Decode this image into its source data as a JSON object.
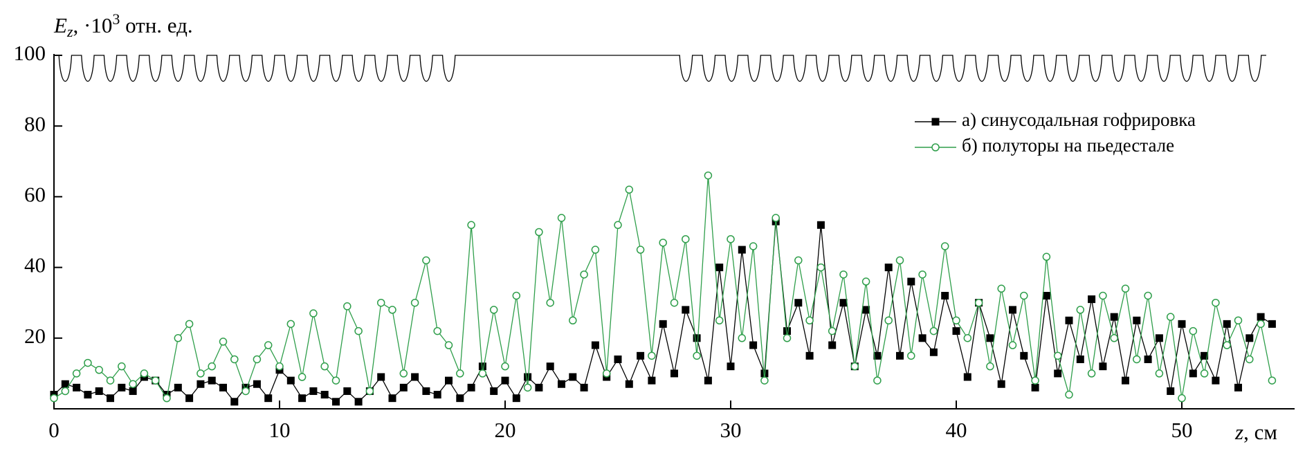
{
  "chart_data": {
    "type": "line",
    "ylabel": [
      "E",
      "z",
      ", ·10",
      "3",
      " отн. ед."
    ],
    "xlabel": [
      "z",
      ", см"
    ],
    "x": [
      0,
      0.5,
      1,
      1.5,
      2,
      2.5,
      3,
      3.5,
      4,
      4.5,
      5,
      5.5,
      6,
      6.5,
      7,
      7.5,
      8,
      8.5,
      9,
      9.5,
      10,
      10.5,
      11,
      11.5,
      12,
      12.5,
      13,
      13.5,
      14,
      14.5,
      15,
      15.5,
      16,
      16.5,
      17,
      17.5,
      18,
      18.5,
      19,
      19.5,
      20,
      20.5,
      21,
      21.5,
      22,
      22.5,
      23,
      23.5,
      24,
      24.5,
      25,
      25.5,
      26,
      26.5,
      27,
      27.5,
      28,
      28.5,
      29,
      29.5,
      30,
      30.5,
      31,
      31.5,
      32,
      32.5,
      33,
      33.5,
      34,
      34.5,
      35,
      35.5,
      36,
      36.5,
      37,
      37.5,
      38,
      38.5,
      39,
      39.5,
      40,
      40.5,
      41,
      41.5,
      42,
      42.5,
      43,
      43.5,
      44,
      44.5,
      45,
      45.5,
      46,
      46.5,
      47,
      47.5,
      48,
      48.5,
      49,
      49.5,
      50,
      50.5,
      51,
      51.5,
      52,
      52.5,
      53,
      53.5,
      54
    ],
    "series": [
      {
        "name": "а) синусодальная гофрировка",
        "color": "#000000",
        "marker": "square",
        "values": [
          4,
          7,
          6,
          4,
          5,
          3,
          6,
          5,
          9,
          8,
          4,
          6,
          3,
          7,
          8,
          6,
          2,
          6,
          7,
          3,
          11,
          8,
          3,
          5,
          4,
          2,
          5,
          2,
          5,
          9,
          3,
          6,
          9,
          5,
          4,
          8,
          3,
          6,
          12,
          5,
          8,
          3,
          9,
          6,
          12,
          7,
          9,
          6,
          18,
          9,
          14,
          7,
          15,
          8,
          24,
          10,
          28,
          20,
          8,
          40,
          12,
          45,
          18,
          10,
          53,
          22,
          30,
          15,
          52,
          18,
          30,
          12,
          28,
          15,
          40,
          15,
          36,
          20,
          16,
          32,
          22,
          9,
          30,
          20,
          7,
          28,
          15,
          6,
          32,
          10,
          25,
          14,
          31,
          12,
          26,
          8,
          25,
          14,
          20,
          5,
          24,
          10,
          15,
          8,
          24,
          6,
          20,
          26,
          24
        ]
      },
      {
        "name": "б) полуторы на пьедестале",
        "color": "#2e9e4a",
        "marker": "circle",
        "values": [
          3,
          5,
          10,
          13,
          11,
          8,
          12,
          7,
          10,
          8,
          3,
          20,
          24,
          10,
          12,
          19,
          14,
          5,
          14,
          18,
          12,
          24,
          9,
          27,
          12,
          8,
          29,
          22,
          5,
          30,
          28,
          10,
          30,
          42,
          22,
          18,
          10,
          52,
          10,
          28,
          12,
          32,
          6,
          50,
          30,
          54,
          25,
          38,
          45,
          10,
          52,
          62,
          45,
          15,
          47,
          30,
          48,
          15,
          66,
          25,
          48,
          20,
          46,
          8,
          54,
          20,
          42,
          25,
          40,
          22,
          38,
          12,
          36,
          8,
          25,
          42,
          15,
          38,
          22,
          46,
          25,
          20,
          30,
          12,
          34,
          18,
          32,
          8,
          43,
          15,
          4,
          28,
          10,
          32,
          20,
          34,
          14,
          32,
          10,
          26,
          3,
          22,
          10,
          30,
          18,
          25,
          14,
          24,
          8
        ]
      }
    ],
    "xlim": [
      0,
      55
    ],
    "ylim": [
      0,
      100
    ],
    "xticks": [
      0,
      10,
      20,
      30,
      40,
      50
    ],
    "yticks": [
      20,
      40,
      60,
      80,
      100
    ],
    "xtick_zero_label": true,
    "legend": "upper-right"
  }
}
